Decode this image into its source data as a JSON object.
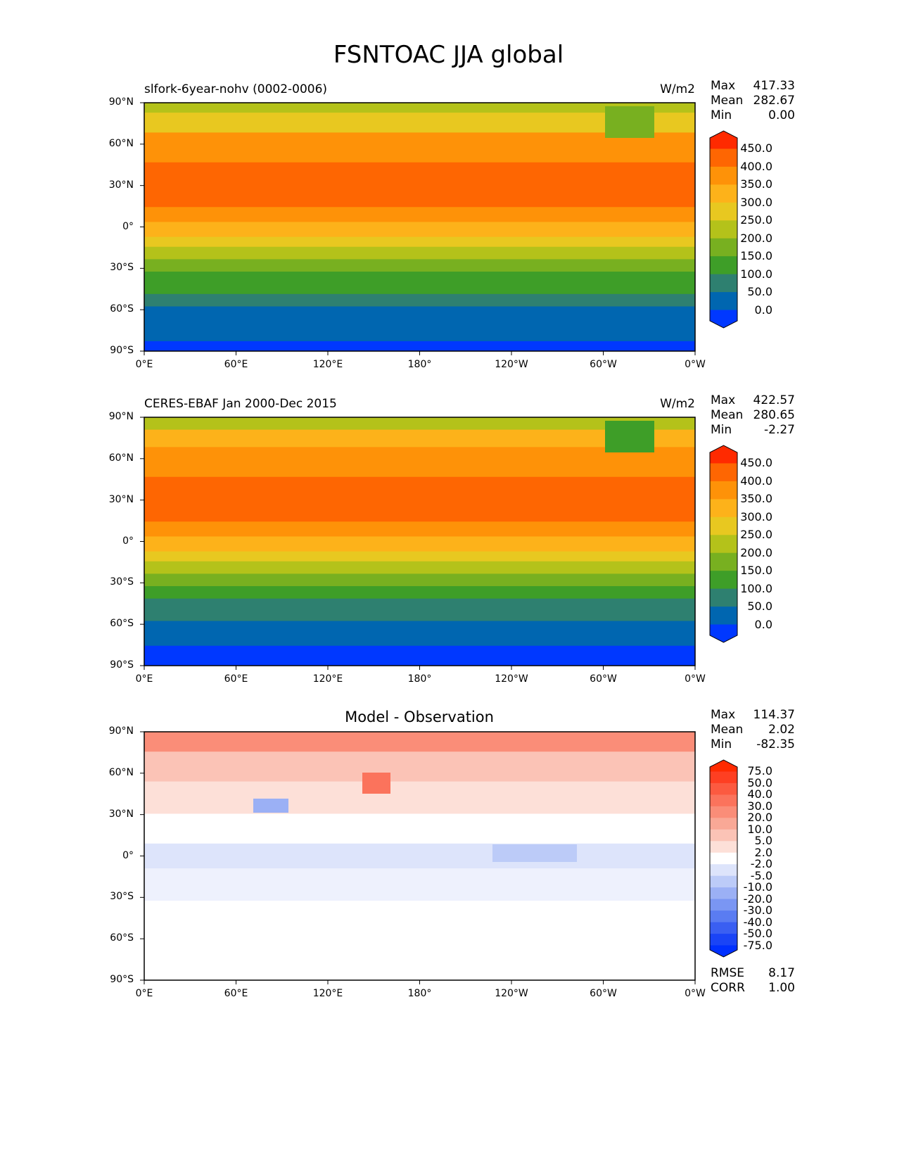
{
  "title": "FSNTOAC JJA global",
  "xticks": [
    "0°E",
    "60°E",
    "120°E",
    "180°",
    "120°W",
    "60°W",
    "0°W"
  ],
  "yticks": [
    "90°N",
    "60°N",
    "30°N",
    "0°",
    "30°S",
    "60°S",
    "90°S"
  ],
  "panels": [
    {
      "subtitle": "slfork-6year-nohv (0002-0006)",
      "units": "W/m2",
      "stats": {
        "max_label": "Max",
        "max": "417.33",
        "mean_label": "Mean",
        "mean": "282.67",
        "min_label": "Min",
        "min": "0.00"
      },
      "colorbar_labels": [
        "450.0",
        "400.0",
        "350.0",
        "300.0",
        "250.0",
        "200.0",
        "150.0",
        "100.0",
        "50.0",
        "0.0"
      ],
      "colorbar_colors": [
        "#ff2a00",
        "#fe6602",
        "#fe9208",
        "#fdb21a",
        "#e8c820",
        "#b4c21a",
        "#78b020",
        "#3e9e28",
        "#2e8070",
        "#0066b0",
        "#0038ff"
      ]
    },
    {
      "subtitle": "CERES-EBAF Jan 2000-Dec 2015",
      "units": "W/m2",
      "stats": {
        "max_label": "Max",
        "max": "422.57",
        "mean_label": "Mean",
        "mean": "280.65",
        "min_label": "Min",
        "min": "-2.27"
      },
      "colorbar_labels": [
        "450.0",
        "400.0",
        "350.0",
        "300.0",
        "250.0",
        "200.0",
        "150.0",
        "100.0",
        "50.0",
        "0.0"
      ],
      "colorbar_colors": [
        "#ff2a00",
        "#fe6602",
        "#fe9208",
        "#fdb21a",
        "#e8c820",
        "#b4c21a",
        "#78b020",
        "#3e9e28",
        "#2e8070",
        "#0066b0",
        "#0038ff"
      ]
    },
    {
      "subtitle": "Model - Observation",
      "units": "",
      "stats": {
        "max_label": "Max",
        "max": "114.37",
        "mean_label": "Mean",
        "mean": "2.02",
        "min_label": "Min",
        "min": "-82.35"
      },
      "colorbar_labels": [
        "75.0",
        "50.0",
        "40.0",
        "30.0",
        "20.0",
        "10.0",
        "5.0",
        "2.0",
        "-2.0",
        "-5.0",
        "-10.0",
        "-20.0",
        "-30.0",
        "-40.0",
        "-50.0",
        "-75.0"
      ],
      "colorbar_colors": [
        "#ff2a00",
        "#fe3f22",
        "#fc5a40",
        "#fb735c",
        "#fa8d78",
        "#f9a896",
        "#fbc3b6",
        "#fde0d8",
        "#ffffff",
        "#dde4fb",
        "#bccbf8",
        "#9bb0f5",
        "#7a96f3",
        "#5a7cf2",
        "#3a5ff2",
        "#1a44f6",
        "#0030ff"
      ],
      "footer": {
        "rmse_label": "RMSE",
        "rmse": "8.17",
        "corr_label": "CORR",
        "corr": "1.00"
      }
    }
  ]
}
